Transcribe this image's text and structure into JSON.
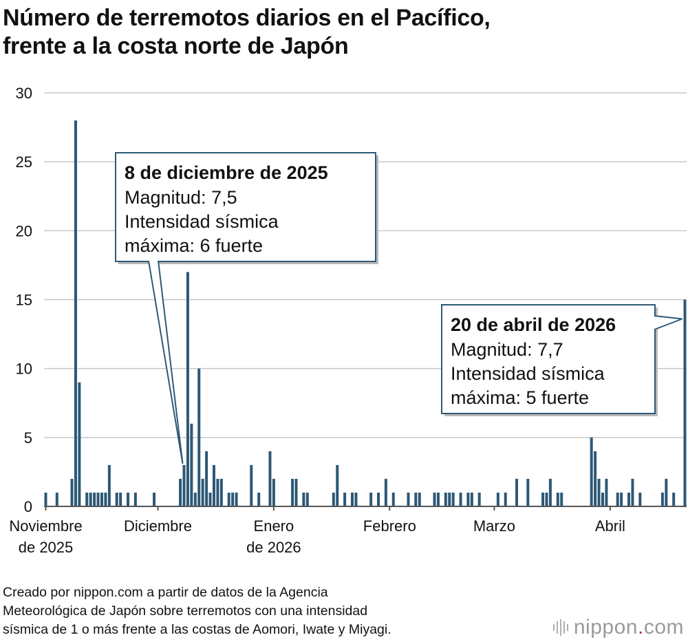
{
  "title_lines": [
    "Número de terremotos diarios en el Pacífico,",
    "frente a la costa norte de Japón"
  ],
  "colors": {
    "bar": "#2d5876",
    "grid": "#c8c8c8",
    "axis": "#555555",
    "callout_border": "#2d5876",
    "logo_dot": "#d0282f"
  },
  "chart_data": {
    "type": "bar",
    "title": "Número de terremotos diarios en el Pacífico, frente a la costa norte de Japón",
    "xlabel": "",
    "ylabel": "",
    "ylim": [
      0,
      30
    ],
    "yticks": [
      "0",
      "5",
      "10",
      "15",
      "20",
      "25",
      "30"
    ],
    "x_range_days": [
      0,
      171
    ],
    "x_tick_labels": [
      {
        "lines": [
          "Noviembre",
          "de 2025"
        ],
        "day": 0
      },
      {
        "lines": [
          "Diciembre"
        ],
        "day": 30
      },
      {
        "lines": [
          "Enero",
          "de 2026"
        ],
        "day": 61
      },
      {
        "lines": [
          "Febrero"
        ],
        "day": 92
      },
      {
        "lines": [
          "Marzo"
        ],
        "day": 120
      },
      {
        "lines": [
          "Abril"
        ],
        "day": 151
      }
    ],
    "series": [
      {
        "name": "Terremotos diarios",
        "points": [
          {
            "day": 0,
            "value": 1
          },
          {
            "day": 3,
            "value": 1
          },
          {
            "day": 7,
            "value": 2
          },
          {
            "day": 8,
            "value": 28
          },
          {
            "day": 9,
            "value": 9
          },
          {
            "day": 11,
            "value": 1
          },
          {
            "day": 12,
            "value": 1
          },
          {
            "day": 13,
            "value": 1
          },
          {
            "day": 14,
            "value": 1
          },
          {
            "day": 15,
            "value": 1
          },
          {
            "day": 16,
            "value": 1
          },
          {
            "day": 17,
            "value": 3
          },
          {
            "day": 19,
            "value": 1
          },
          {
            "day": 20,
            "value": 1
          },
          {
            "day": 22,
            "value": 1
          },
          {
            "day": 24,
            "value": 1
          },
          {
            "day": 29,
            "value": 1
          },
          {
            "day": 36,
            "value": 2
          },
          {
            "day": 37,
            "value": 3
          },
          {
            "day": 38,
            "value": 17
          },
          {
            "day": 39,
            "value": 6
          },
          {
            "day": 40,
            "value": 1
          },
          {
            "day": 41,
            "value": 10
          },
          {
            "day": 42,
            "value": 2
          },
          {
            "day": 43,
            "value": 4
          },
          {
            "day": 44,
            "value": 1
          },
          {
            "day": 45,
            "value": 3
          },
          {
            "day": 46,
            "value": 2
          },
          {
            "day": 47,
            "value": 2
          },
          {
            "day": 49,
            "value": 1
          },
          {
            "day": 50,
            "value": 1
          },
          {
            "day": 51,
            "value": 1
          },
          {
            "day": 55,
            "value": 3
          },
          {
            "day": 57,
            "value": 1
          },
          {
            "day": 60,
            "value": 4
          },
          {
            "day": 61,
            "value": 2
          },
          {
            "day": 66,
            "value": 2
          },
          {
            "day": 67,
            "value": 2
          },
          {
            "day": 69,
            "value": 1
          },
          {
            "day": 70,
            "value": 1
          },
          {
            "day": 77,
            "value": 1
          },
          {
            "day": 78,
            "value": 3
          },
          {
            "day": 80,
            "value": 1
          },
          {
            "day": 82,
            "value": 1
          },
          {
            "day": 83,
            "value": 1
          },
          {
            "day": 87,
            "value": 1
          },
          {
            "day": 89,
            "value": 1
          },
          {
            "day": 91,
            "value": 2
          },
          {
            "day": 93,
            "value": 1
          },
          {
            "day": 97,
            "value": 1
          },
          {
            "day": 99,
            "value": 1
          },
          {
            "day": 100,
            "value": 1
          },
          {
            "day": 104,
            "value": 1
          },
          {
            "day": 105,
            "value": 1
          },
          {
            "day": 107,
            "value": 1
          },
          {
            "day": 108,
            "value": 1
          },
          {
            "day": 109,
            "value": 1
          },
          {
            "day": 111,
            "value": 1
          },
          {
            "day": 113,
            "value": 1
          },
          {
            "day": 114,
            "value": 1
          },
          {
            "day": 116,
            "value": 1
          },
          {
            "day": 121,
            "value": 1
          },
          {
            "day": 123,
            "value": 1
          },
          {
            "day": 126,
            "value": 2
          },
          {
            "day": 129,
            "value": 2
          },
          {
            "day": 133,
            "value": 1
          },
          {
            "day": 134,
            "value": 1
          },
          {
            "day": 135,
            "value": 2
          },
          {
            "day": 137,
            "value": 1
          },
          {
            "day": 138,
            "value": 1
          },
          {
            "day": 146,
            "value": 5
          },
          {
            "day": 147,
            "value": 4
          },
          {
            "day": 148,
            "value": 2
          },
          {
            "day": 149,
            "value": 1
          },
          {
            "day": 150,
            "value": 2
          },
          {
            "day": 153,
            "value": 1
          },
          {
            "day": 154,
            "value": 1
          },
          {
            "day": 156,
            "value": 1
          },
          {
            "day": 157,
            "value": 2
          },
          {
            "day": 159,
            "value": 1
          },
          {
            "day": 165,
            "value": 1
          },
          {
            "day": 166,
            "value": 2
          },
          {
            "day": 168,
            "value": 1
          },
          {
            "day": 171,
            "value": 15
          }
        ]
      }
    ],
    "annotations": [
      {
        "target_day": 37,
        "target_value": 3,
        "heading": "8 de diciembre de 2025",
        "lines": [
          "Magnitud: 7,5",
          "Intensidad sísmica",
          "máxima: 6 fuerte"
        ]
      },
      {
        "target_day": 171,
        "target_value": 15,
        "heading": "20 de abril de 2026",
        "lines": [
          "Magnitud: 7,7",
          "Intensidad sísmica",
          "máxima: 5 fuerte"
        ]
      }
    ]
  },
  "footer_lines": [
    "Creado por nippon.com a partir de datos de la Agencia",
    "Meteorológica de Japón sobre terremotos con una intensidad",
    "sísmica de 1 o más frente a las costas de Aomori, Iwate y Miyagi."
  ],
  "logo": {
    "main": "nippon",
    "dot": ".",
    "suffix": "com"
  }
}
